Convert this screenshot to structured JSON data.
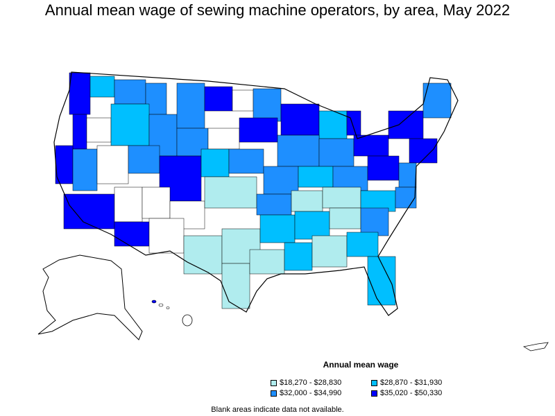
{
  "title": "Annual mean wage of sewing machine operators, by area, May 2022",
  "legend": {
    "title": "Annual mean wage",
    "items": [
      {
        "label": "$18,270 - $28,830",
        "color": "#b0ecee"
      },
      {
        "label": "$28,870 - $31,930",
        "color": "#00bfff"
      },
      {
        "label": "$32,000 - $34,990",
        "color": "#1e8fff"
      },
      {
        "label": "$35,020 - $50,330",
        "color": "#0000ff"
      }
    ]
  },
  "note": "Blank areas indicate data not available.",
  "colors": {
    "outline": "#000000",
    "no_data": "#ffffff"
  }
}
